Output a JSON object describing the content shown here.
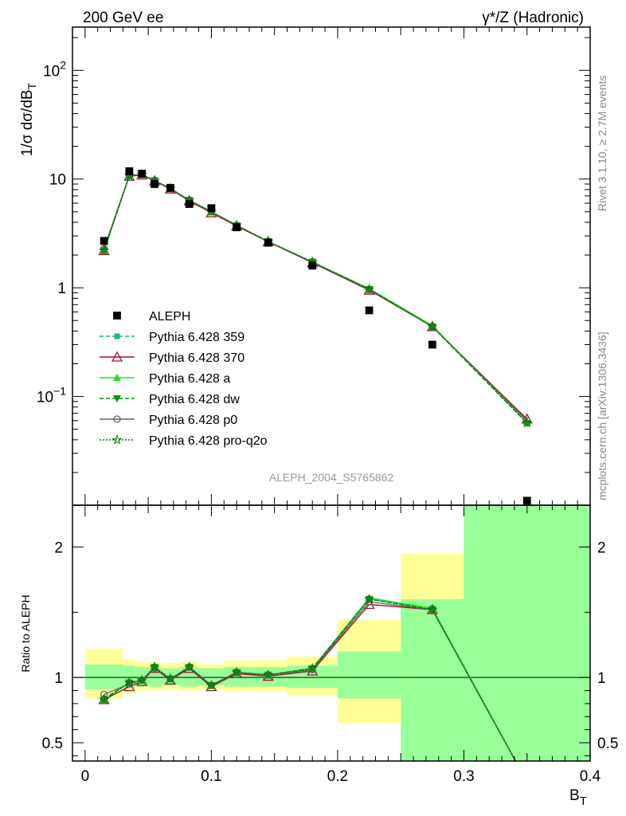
{
  "header": {
    "left": "200 GeV ee",
    "right": "γ*/Z (Hadronic)"
  },
  "side_labels": {
    "rivet": "Rivet 3.1.10, ≥ 2.7M events",
    "mcplots": "mcplots.cern.ch [arXiv:1306.3436]"
  },
  "watermark": "ALEPH_2004_S5765862",
  "colors": {
    "data": "#000000",
    "p359": "#19b38c",
    "p370": "#99192b",
    "pa": "#19e619",
    "pdw": "#009900",
    "pp0": "#666666",
    "pq2o": "#007a00",
    "band_inner": "#99ff99",
    "band_outer": "#ffff99"
  },
  "chart_data": [
    {
      "type": "scatter",
      "title": "",
      "xlabel": "B_T",
      "ylabel": "1/σ dσ/dB_T",
      "yscale": "log",
      "xlim": [
        -0.01,
        0.4
      ],
      "ylim": [
        0.01,
        250
      ],
      "x_ticks": [
        "0",
        "0.1",
        "0.2",
        "0.3",
        "0.4"
      ],
      "y_ticks": [
        "10^-1",
        "1",
        "10",
        "10^2"
      ],
      "legend_position": "center-left",
      "data": {
        "name": "ALEPH",
        "x": [
          0.015,
          0.035,
          0.045,
          0.055,
          0.0675,
          0.0825,
          0.1,
          0.12,
          0.145,
          0.18,
          0.225,
          0.275,
          0.35
        ],
        "y": [
          2.7,
          11.8,
          11.2,
          9.0,
          8.3,
          5.9,
          5.4,
          3.6,
          2.6,
          1.6,
          0.62,
          0.3,
          0.011
        ]
      },
      "series": [
        {
          "name": "Pythia 6.428 359",
          "style": "dashed",
          "marker": "square",
          "color_key": "p359",
          "y": [
            2.2,
            10.7,
            11.0,
            9.6,
            8.2,
            6.4,
            5.0,
            3.75,
            2.67,
            1.72,
            0.98,
            0.44,
            0.057
          ]
        },
        {
          "name": "Pythia 6.428 370",
          "style": "solid",
          "marker": "open-triangle",
          "color_key": "p370",
          "y": [
            2.2,
            10.6,
            10.9,
            9.6,
            8.1,
            6.3,
            4.9,
            3.7,
            2.65,
            1.7,
            0.95,
            0.44,
            0.062
          ]
        },
        {
          "name": "Pythia 6.428 a",
          "style": "solid",
          "marker": "triangle",
          "color_key": "pa",
          "y": [
            2.2,
            10.7,
            11.0,
            9.7,
            8.2,
            6.4,
            5.0,
            3.75,
            2.67,
            1.73,
            0.98,
            0.45,
            0.058
          ]
        },
        {
          "name": "Pythia 6.428 dw",
          "style": "dashed",
          "marker": "triangle-down",
          "color_key": "pdw",
          "y": [
            2.2,
            10.7,
            11.0,
            9.7,
            8.2,
            6.4,
            5.0,
            3.75,
            2.67,
            1.73,
            0.97,
            0.44,
            0.057
          ]
        },
        {
          "name": "Pythia 6.428 p0",
          "style": "solid",
          "marker": "open-circle",
          "color_key": "pp0",
          "y": [
            2.3,
            10.8,
            11.0,
            9.7,
            8.2,
            6.4,
            5.0,
            3.75,
            2.67,
            1.72,
            0.96,
            0.44,
            0.06
          ]
        },
        {
          "name": "Pythia 6.428 pro-q2o",
          "style": "dotted",
          "marker": "star",
          "color_key": "pq2o",
          "y": [
            2.2,
            10.7,
            11.0,
            9.7,
            8.2,
            6.4,
            5.0,
            3.75,
            2.67,
            1.73,
            0.97,
            0.44,
            0.057
          ]
        }
      ]
    },
    {
      "type": "line",
      "title": "",
      "xlabel": "B_T",
      "ylabel": "Ratio to ALEPH",
      "ylim": [
        0.36,
        2.32
      ],
      "y_ticks": [
        "0.5",
        "1",
        "2"
      ],
      "bins": [
        {
          "lo": 0.0,
          "hi": 0.03,
          "inner": [
            0.91,
            1.1
          ],
          "outer": [
            0.84,
            1.22
          ]
        },
        {
          "lo": 0.03,
          "hi": 0.04,
          "inner": [
            0.92,
            1.09
          ],
          "outer": [
            0.88,
            1.14
          ]
        },
        {
          "lo": 0.04,
          "hi": 0.05,
          "inner": [
            0.93,
            1.08
          ],
          "outer": [
            0.9,
            1.12
          ]
        },
        {
          "lo": 0.05,
          "hi": 0.06,
          "inner": [
            0.93,
            1.08
          ],
          "outer": [
            0.9,
            1.12
          ]
        },
        {
          "lo": 0.06,
          "hi": 0.075,
          "inner": [
            0.94,
            1.07
          ],
          "outer": [
            0.91,
            1.11
          ]
        },
        {
          "lo": 0.075,
          "hi": 0.09,
          "inner": [
            0.93,
            1.08
          ],
          "outer": [
            0.9,
            1.12
          ]
        },
        {
          "lo": 0.09,
          "hi": 0.11,
          "inner": [
            0.94,
            1.07
          ],
          "outer": [
            0.91,
            1.1
          ]
        },
        {
          "lo": 0.11,
          "hi": 0.13,
          "inner": [
            0.93,
            1.08
          ],
          "outer": [
            0.89,
            1.13
          ]
        },
        {
          "lo": 0.13,
          "hi": 0.16,
          "inner": [
            0.93,
            1.08
          ],
          "outer": [
            0.89,
            1.13
          ]
        },
        {
          "lo": 0.16,
          "hi": 0.2,
          "inner": [
            0.92,
            1.09
          ],
          "outer": [
            0.86,
            1.16
          ]
        },
        {
          "lo": 0.2,
          "hi": 0.25,
          "inner": [
            0.84,
            1.2
          ],
          "outer": [
            0.65,
            1.44
          ]
        },
        {
          "lo": 0.25,
          "hi": 0.3,
          "inner": [
            0.3,
            1.6
          ],
          "outer": [
            0.3,
            1.95
          ]
        },
        {
          "lo": 0.3,
          "hi": 0.4,
          "inner": [
            0.3,
            2.4
          ],
          "outer": [
            0.3,
            2.4
          ]
        }
      ],
      "series": [
        {
          "name": "Pythia 6.428 359",
          "color_key": "p359",
          "y": [
            0.84,
            0.96,
            0.98,
            1.07,
            0.99,
            1.08,
            0.94,
            1.03,
            1.02,
            1.06,
            1.6,
            1.53,
            0.2
          ]
        },
        {
          "name": "Pythia 6.428 370",
          "color_key": "p370",
          "y": [
            0.83,
            0.93,
            0.97,
            1.07,
            0.98,
            1.07,
            0.93,
            1.03,
            1.01,
            1.05,
            1.56,
            1.52,
            0.2
          ]
        },
        {
          "name": "Pythia 6.428 a",
          "color_key": "pa",
          "y": [
            0.83,
            0.96,
            0.98,
            1.08,
            0.99,
            1.08,
            0.94,
            1.04,
            1.02,
            1.07,
            1.61,
            1.53,
            0.2
          ]
        },
        {
          "name": "Pythia 6.428 dw",
          "color_key": "pdw",
          "y": [
            0.83,
            0.96,
            0.98,
            1.08,
            0.99,
            1.08,
            0.94,
            1.04,
            1.02,
            1.07,
            1.6,
            1.52,
            0.2
          ]
        },
        {
          "name": "Pythia 6.428 p0",
          "color_key": "pp0",
          "y": [
            0.87,
            0.95,
            0.98,
            1.07,
            0.99,
            1.08,
            0.94,
            1.04,
            1.02,
            1.06,
            1.58,
            1.52,
            0.2
          ]
        },
        {
          "name": "Pythia 6.428 pro-q2o",
          "color_key": "pq2o",
          "y": [
            0.83,
            0.96,
            0.98,
            1.08,
            0.99,
            1.08,
            0.94,
            1.04,
            1.02,
            1.07,
            1.6,
            1.52,
            0.2
          ]
        }
      ]
    }
  ]
}
